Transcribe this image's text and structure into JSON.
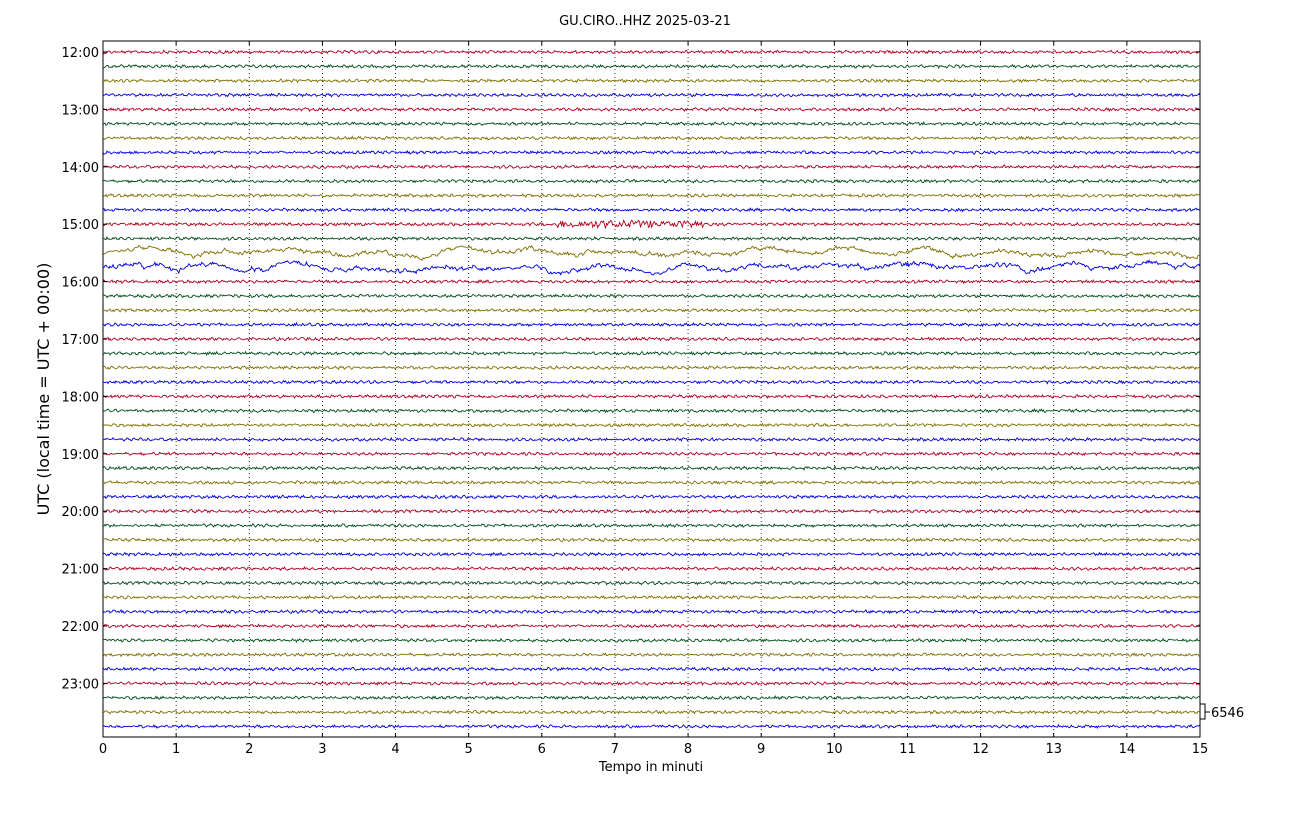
{
  "chart_data": {
    "type": "line",
    "title": "GU.CIRO..HHZ 2025-03-21",
    "xlabel": "Tempo in minuti",
    "ylabel": "UTC (local time = UTC + 00:00)",
    "xlim": [
      0,
      15
    ],
    "x_ticks": [
      "0",
      "1",
      "2",
      "3",
      "4",
      "5",
      "6",
      "7",
      "8",
      "9",
      "10",
      "11",
      "12",
      "13",
      "14",
      "15"
    ],
    "y_ticks": [
      "12:00",
      "13:00",
      "14:00",
      "15:00",
      "16:00",
      "17:00",
      "18:00",
      "19:00",
      "20:00",
      "21:00",
      "22:00",
      "23:00"
    ],
    "trace_colors": [
      "#b2001f",
      "#004d1a",
      "#807000",
      "#0000e0"
    ],
    "trace_start": "12:00",
    "trace_interval_min": 15,
    "trace_count": 48,
    "scale_label": "6546",
    "grid": "vertical dotted lines at each minute",
    "events": [
      {
        "trace_time": "15:00",
        "x_start_min": 6.2,
        "x_end_min": 8.2,
        "note_amplitude": "elevated"
      },
      {
        "trace_time": "15:30",
        "x_start_min": 0,
        "x_end_min": 15,
        "note_amplitude": "long-period"
      },
      {
        "trace_time": "15:45",
        "x_start_min": 0,
        "x_end_min": 15,
        "note_amplitude": "long-period"
      }
    ]
  }
}
